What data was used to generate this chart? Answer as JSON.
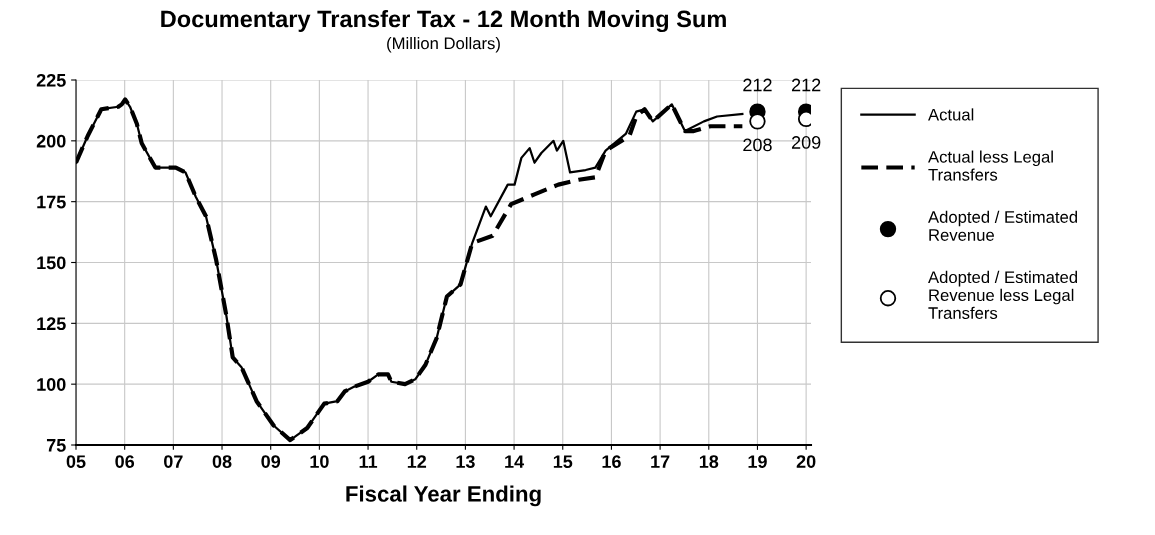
{
  "chart_data": {
    "type": "line",
    "title": "Documentary Transfer Tax - 12 Month Moving Sum",
    "subtitle": "(Million Dollars)",
    "xlabel": "Fiscal Year Ending",
    "xlim": [
      5,
      20.1
    ],
    "ylim": [
      75,
      225
    ],
    "xticks": [
      {
        "value": 5,
        "label": "05"
      },
      {
        "value": 6,
        "label": "06"
      },
      {
        "value": 7,
        "label": "07"
      },
      {
        "value": 8,
        "label": "08"
      },
      {
        "value": 9,
        "label": "09"
      },
      {
        "value": 10,
        "label": "10"
      },
      {
        "value": 11,
        "label": "11"
      },
      {
        "value": 12,
        "label": "12"
      },
      {
        "value": 13,
        "label": "13"
      },
      {
        "value": 14,
        "label": "14"
      },
      {
        "value": 15,
        "label": "15"
      },
      {
        "value": 16,
        "label": "16"
      },
      {
        "value": 17,
        "label": "17"
      },
      {
        "value": 18,
        "label": "18"
      },
      {
        "value": 19,
        "label": "19"
      },
      {
        "value": 20,
        "label": "20"
      }
    ],
    "yticks": [
      75,
      100,
      125,
      150,
      175,
      200,
      225
    ],
    "grid": true,
    "legend": "right",
    "series": [
      {
        "name": "Actual",
        "color": "#000000",
        "line_style": "solid",
        "marker": "none",
        "x": [
          5.0,
          5.24,
          5.52,
          5.87,
          5.94,
          6.01,
          6.11,
          6.25,
          6.35,
          6.63,
          6.87,
          7.05,
          7.25,
          7.46,
          7.67,
          7.88,
          8.09,
          8.22,
          8.4,
          8.71,
          9.06,
          9.4,
          9.75,
          10.1,
          10.37,
          10.52,
          10.72,
          11.0,
          11.21,
          11.41,
          11.48,
          11.76,
          11.97,
          12.18,
          12.41,
          12.62,
          12.9,
          13.14,
          13.42,
          13.52,
          13.87,
          14.01,
          14.15,
          14.32,
          14.42,
          14.56,
          14.81,
          14.88,
          15.01,
          15.15,
          15.47,
          15.67,
          15.88,
          16.3,
          16.51,
          16.68,
          16.85,
          17.24,
          17.51,
          17.9,
          18.17,
          18.69
        ],
        "values": [
          191,
          202,
          213,
          214,
          215,
          217,
          214,
          207,
          199,
          189,
          189,
          189,
          187,
          177,
          169,
          151,
          128,
          111,
          107,
          93,
          83,
          77,
          82,
          92,
          93,
          97,
          99,
          101,
          104,
          104,
          101,
          100,
          102,
          108,
          119,
          136,
          141,
          158,
          173,
          169,
          182,
          182,
          193,
          197,
          191,
          195,
          200,
          196,
          200,
          187,
          188,
          189,
          196,
          203,
          212,
          213,
          208,
          215,
          204,
          208,
          210,
          211
        ]
      },
      {
        "name": "Actual less Legal\nTransfers",
        "color": "#000000",
        "line_style": "dashed",
        "marker": "none",
        "x": [
          5.0,
          5.24,
          5.52,
          5.87,
          5.94,
          6.01,
          6.11,
          6.25,
          6.35,
          6.63,
          6.87,
          7.05,
          7.25,
          7.46,
          7.67,
          7.88,
          8.09,
          8.22,
          8.4,
          8.71,
          9.06,
          9.4,
          9.75,
          10.1,
          10.37,
          10.52,
          10.72,
          11.0,
          11.21,
          11.41,
          11.48,
          11.76,
          11.97,
          12.18,
          12.41,
          12.62,
          12.9,
          13.14,
          13.56,
          13.94,
          14.42,
          14.91,
          15.33,
          15.67,
          15.88,
          16.37,
          16.51,
          16.68,
          16.85,
          17.24,
          17.51,
          17.69,
          18.03,
          18.38,
          18.69
        ],
        "values": [
          191,
          202,
          213,
          214,
          215,
          217,
          214,
          207,
          199,
          189,
          189,
          189,
          187,
          177,
          169,
          151,
          128,
          111,
          107,
          93,
          83,
          77,
          82,
          92,
          93,
          97,
          99,
          101,
          104,
          104,
          101,
          100,
          102,
          108,
          119,
          136,
          141,
          158,
          161,
          174,
          178,
          182,
          184,
          185,
          196,
          202,
          210,
          213,
          208,
          215,
          204,
          204,
          206,
          206,
          206
        ]
      },
      {
        "name": "Adopted / Estimated\nRevenue",
        "type": "scatter",
        "color": "#000000",
        "marker": "circle",
        "x": [
          19,
          20
        ],
        "values": [
          212,
          212
        ],
        "value_labels": [
          "212",
          "212"
        ]
      },
      {
        "name": "Adopted / Estimated\nRevenue less Legal\nTransfers",
        "type": "scatter",
        "color": "#ffffff",
        "marker": "circle",
        "x": [
          19,
          20
        ],
        "values": [
          208,
          209
        ],
        "value_labels": [
          "208",
          "209"
        ]
      }
    ]
  }
}
